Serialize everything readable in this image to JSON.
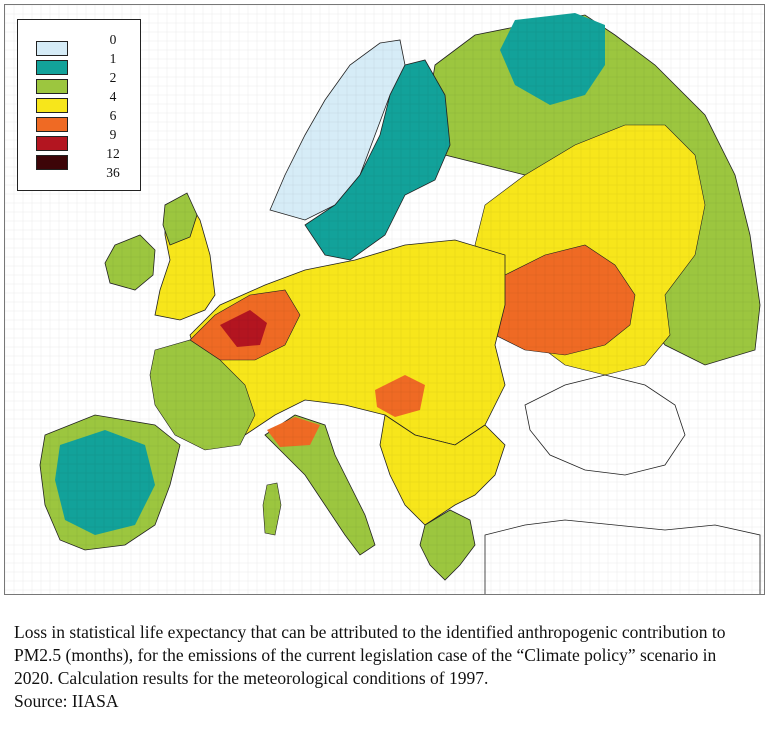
{
  "map": {
    "legend": [
      {
        "label": "0",
        "color": "#d6ecf7"
      },
      {
        "label": "1",
        "color": "#12a29a"
      },
      {
        "label": "2",
        "color": "#9cc63f"
      },
      {
        "label": "4",
        "color": "#f7e61b"
      },
      {
        "label": "6",
        "color": "#ef6a24"
      },
      {
        "label": "9",
        "color": "#b31520"
      },
      {
        "label": "12",
        "color": "#3d0508"
      },
      {
        "label": "36",
        "color": ""
      }
    ],
    "colors": {
      "water": "#ffffff",
      "land_no_data": "#ffffff",
      "border": "#222222"
    }
  },
  "caption": {
    "text": "Loss in statistical life expectancy that can be attributed to the identified anthropogenic contribution to PM2.5 (months), for the emissions of the current legislation case of the “Climate policy” scenario in 2020. Calculation results for the meteorological conditions of 1997.",
    "source": "Source: IIASA"
  }
}
